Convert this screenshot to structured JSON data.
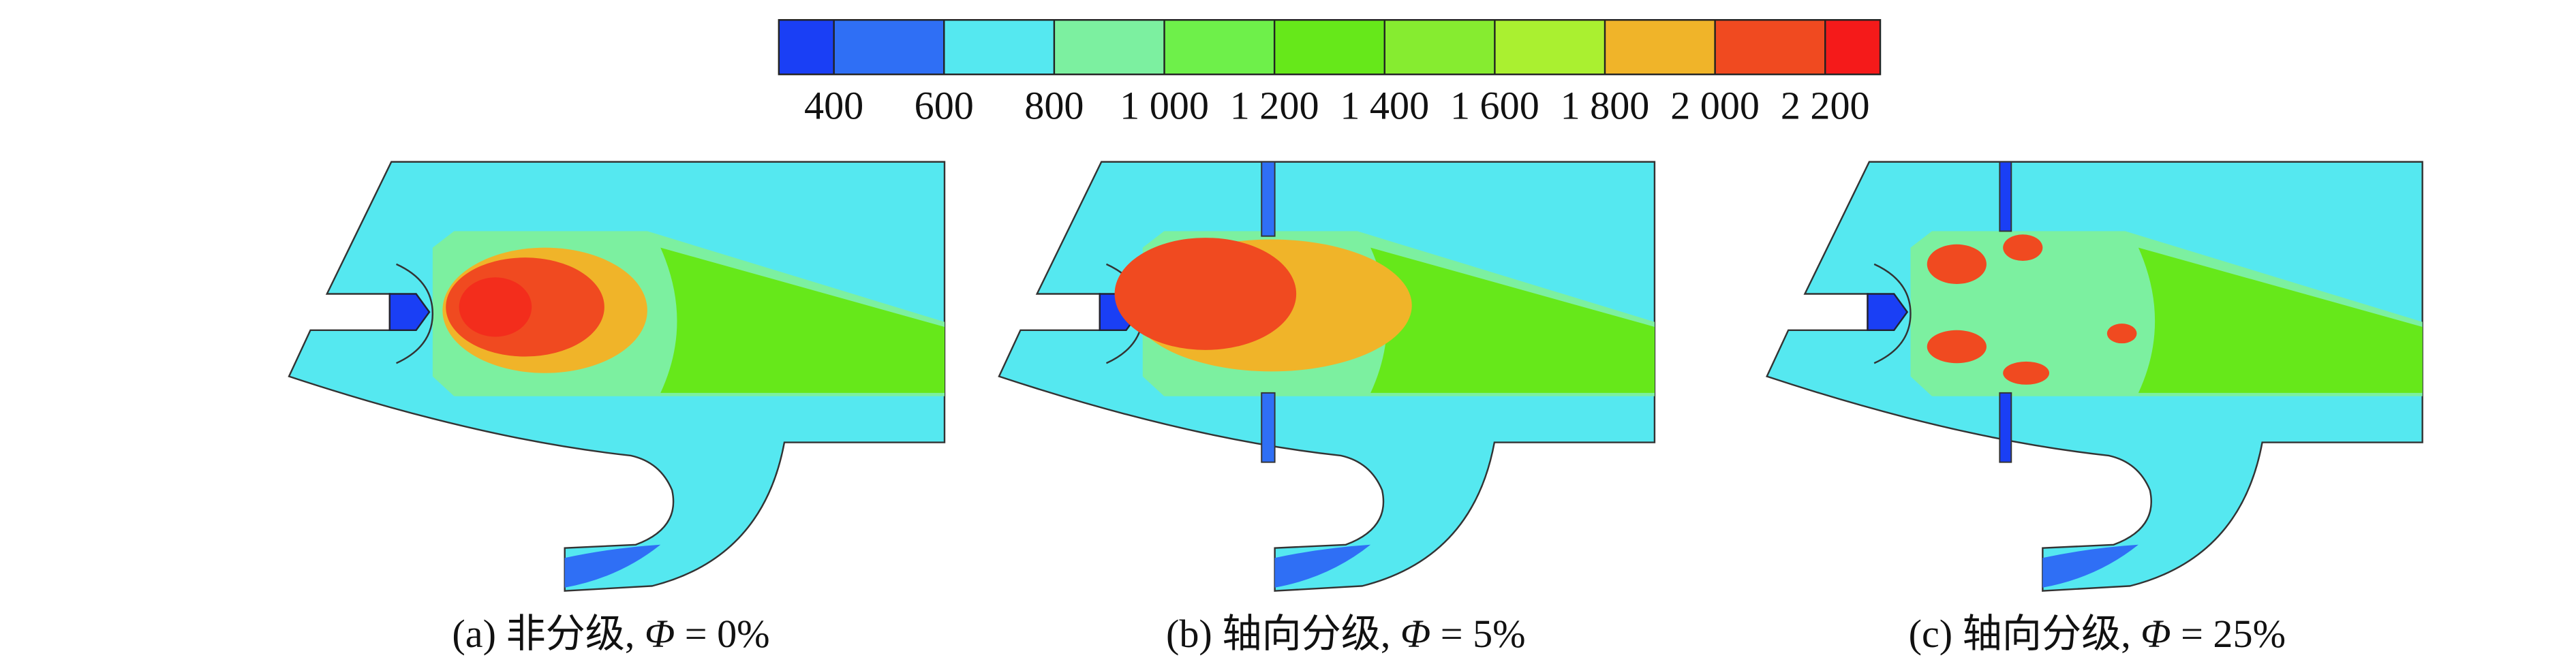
{
  "colorbar": {
    "colors": [
      "#1a3ff5",
      "#2f6ff5",
      "#55e8f0",
      "#7cf0a0",
      "#6ef04a",
      "#66e81a",
      "#86ec30",
      "#aaf030",
      "#f0b429",
      "#f04a20",
      "#f51a1a"
    ],
    "ticks": [
      {
        "value": 400,
        "label": "400"
      },
      {
        "value": 600,
        "label": "600"
      },
      {
        "value": 800,
        "label": "800"
      },
      {
        "value": 1000,
        "label": "1 000"
      },
      {
        "value": 1200,
        "label": "1 200"
      },
      {
        "value": 1400,
        "label": "1 400"
      },
      {
        "value": 1600,
        "label": "1 600"
      },
      {
        "value": 1800,
        "label": "1 800"
      },
      {
        "value": 2000,
        "label": "2 000"
      },
      {
        "value": 2200,
        "label": "2 200"
      }
    ]
  },
  "panels": [
    {
      "caption": {
        "prefix": "(a) 非分级, ",
        "symbol": "Φ",
        "suffix": " = 0%"
      }
    },
    {
      "caption": {
        "prefix": "(b) 轴向分级, ",
        "symbol": "Φ",
        "suffix": " = 5%"
      }
    },
    {
      "caption": {
        "prefix": "(c) 轴向分级, ",
        "symbol": "Φ",
        "suffix": " = 25%"
      }
    }
  ]
}
